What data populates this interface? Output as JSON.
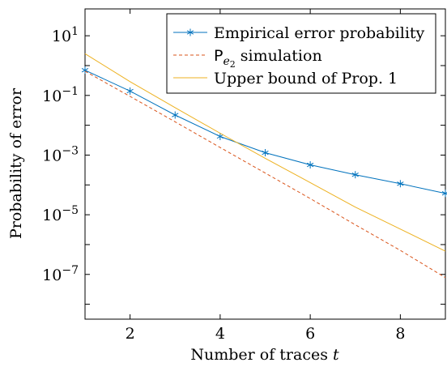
{
  "chart_data": {
    "type": "line",
    "xlabel": "Number of traces t",
    "ylabel": "Probability of error",
    "xlim": [
      1,
      9
    ],
    "ylim_log10": [
      -8.5,
      1.9
    ],
    "yscale": "log",
    "grid": false,
    "legend_position": "top-right",
    "x_ticks": [
      2,
      4,
      6,
      8
    ],
    "y_ticks": [
      {
        "exp": 1,
        "label": "10^1"
      },
      {
        "exp": -1,
        "label": "10^-1"
      },
      {
        "exp": -3,
        "label": "10^-3"
      },
      {
        "exp": -5,
        "label": "10^-5"
      },
      {
        "exp": -7,
        "label": "10^-7"
      }
    ],
    "series": [
      {
        "name": "Empirical error probability",
        "color": "#0072BD",
        "style": "solid-asterisk",
        "x": [
          1,
          2,
          3,
          4,
          5,
          6,
          7,
          8,
          9
        ],
        "y": [
          0.7,
          0.14,
          0.022,
          0.0042,
          0.0012,
          0.00047,
          0.00022,
          0.00011,
          5.2e-05
        ]
      },
      {
        "name": "P_e2 simulation",
        "color": "#D95319",
        "style": "dashed",
        "x": [
          1,
          2,
          3,
          4,
          5,
          6,
          7,
          8,
          9
        ],
        "y": [
          0.65,
          0.093,
          0.013,
          0.0018,
          0.00025,
          3.5e-05,
          4.6e-06,
          6.4e-07,
          7.8e-08
        ]
      },
      {
        "name": "Upper bound of Prop. 1",
        "color": "#EDB120",
        "style": "solid",
        "x": [
          1,
          2,
          3,
          4,
          5,
          6,
          7,
          8,
          9
        ],
        "y": [
          2.5,
          0.29,
          0.039,
          0.0054,
          0.00078,
          0.00012,
          1.8e-05,
          3.3e-06,
          6e-07
        ]
      }
    ]
  }
}
